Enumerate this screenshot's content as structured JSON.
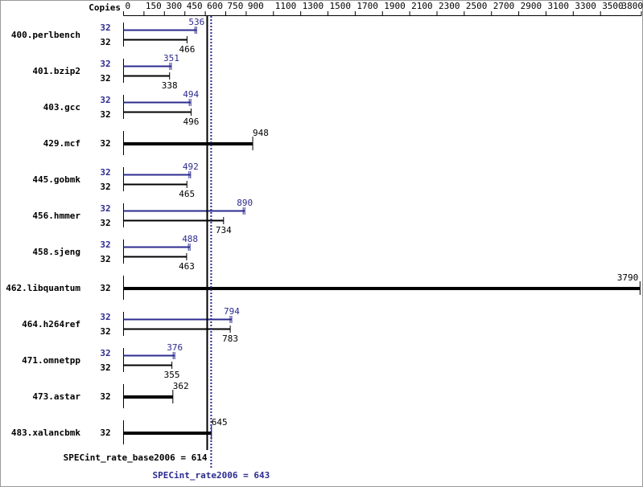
{
  "chart_data": {
    "type": "bar",
    "orientation": "horizontal",
    "axis_label": "Copies",
    "xlim": [
      0,
      3800
    ],
    "xticks": [
      0,
      150,
      300,
      450,
      600,
      750,
      900,
      1100,
      1300,
      1500,
      1700,
      1900,
      2100,
      2300,
      2500,
      2700,
      2900,
      3100,
      3300,
      3500,
      3800
    ],
    "categories": [
      "400.perlbench",
      "401.bzip2",
      "403.gcc",
      "429.mcf",
      "445.gobmk",
      "456.hmmer",
      "458.sjeng",
      "462.libquantum",
      "464.h264ref",
      "471.omnetpp",
      "473.astar",
      "483.xalancbmk"
    ],
    "series": [
      {
        "color": "#2b2b8f",
        "copies": [
          32,
          32,
          32,
          null,
          32,
          32,
          32,
          null,
          32,
          32,
          null,
          null
        ],
        "values": [
          536,
          351,
          494,
          null,
          492,
          890,
          488,
          null,
          794,
          376,
          null,
          null
        ]
      },
      {
        "color": "#000000",
        "copies": [
          32,
          32,
          32,
          32,
          32,
          32,
          32,
          32,
          32,
          32,
          32,
          32
        ],
        "values": [
          466,
          338,
          496,
          948,
          465,
          734,
          463,
          3790,
          783,
          355,
          362,
          645
        ]
      }
    ],
    "reference_lines": [
      {
        "label": "SPECint_rate_base2006 = 614",
        "value": 614,
        "color": "#000000"
      },
      {
        "label": "SPECint_rate2006 = 643",
        "value": 643,
        "color": "#2b2b8f"
      }
    ]
  }
}
